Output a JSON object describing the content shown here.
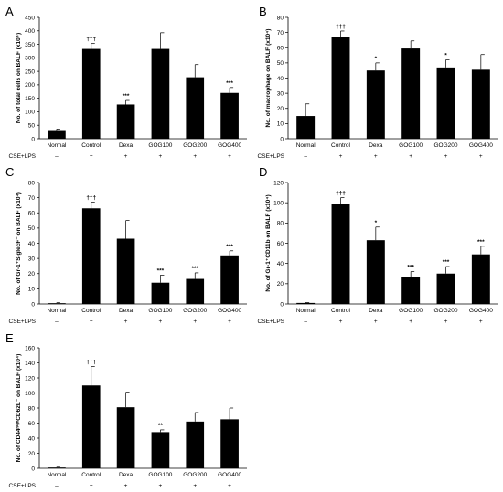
{
  "chart_data": [
    {
      "type": "bar",
      "panel": "A",
      "ylabel": "No. of total cells on BALF (x10⁴)",
      "ylim": [
        0,
        450
      ],
      "yticks": [
        0,
        50,
        100,
        150,
        200,
        250,
        300,
        350,
        400,
        450
      ],
      "categories": [
        "Normal",
        "Control",
        "Dexa",
        "GOG100",
        "GOG200",
        "GOG400"
      ],
      "values": [
        32,
        333,
        127,
        333,
        228,
        170
      ],
      "errors": [
        4,
        20,
        15,
        60,
        47,
        20
      ],
      "significance": [
        "",
        "†††",
        "***",
        "",
        "",
        "***"
      ],
      "treatment_label": "CSE+LPS",
      "treatment": [
        "–",
        "+",
        "+",
        "+",
        "+",
        "+"
      ],
      "color": "#000000"
    },
    {
      "type": "bar",
      "panel": "B",
      "ylabel": "No. of macrophage on BALF (x10⁴)",
      "ylim": [
        0,
        80
      ],
      "yticks": [
        0,
        10,
        20,
        30,
        40,
        50,
        60,
        70,
        80
      ],
      "categories": [
        "Normal",
        "Control",
        "Dexa",
        "GOG100",
        "GOG200",
        "GOG400"
      ],
      "values": [
        15,
        67,
        45,
        59.5,
        47,
        45.5
      ],
      "errors": [
        8,
        4,
        5,
        5,
        5,
        10
      ],
      "significance": [
        "",
        "†††",
        "*",
        "",
        "*",
        ""
      ],
      "treatment_label": "CSE+LPS",
      "treatment": [
        "–",
        "+",
        "+",
        "+",
        "+",
        "+"
      ],
      "color": "#000000"
    },
    {
      "type": "bar",
      "panel": "C",
      "ylabel": "No. of Gr-1⁺SiglecF⁻ on BALF (x10⁴)",
      "ylim": [
        0,
        80
      ],
      "yticks": [
        0,
        10,
        20,
        30,
        40,
        50,
        60,
        70,
        80
      ],
      "categories": [
        "Normal",
        "Control",
        "Dexa",
        "GOG100",
        "GOG200",
        "GOG400"
      ],
      "values": [
        0.5,
        63,
        43,
        14,
        16.5,
        32
      ],
      "errors": [
        0.3,
        4,
        12,
        5,
        4,
        3
      ],
      "significance": [
        "",
        "†††",
        "",
        "***",
        "***",
        "***"
      ],
      "treatment_label": "CSE+LPS",
      "treatment": [
        "–",
        "+",
        "+",
        "+",
        "+",
        "+"
      ],
      "color": "#000000"
    },
    {
      "type": "bar",
      "panel": "D",
      "ylabel": "No. of Gr-1⁺CD11b on BALF (x10⁴)",
      "ylim": [
        0,
        120
      ],
      "yticks": [
        0,
        20,
        40,
        60,
        80,
        100,
        120
      ],
      "categories": [
        "Normal",
        "Control",
        "Dexa",
        "GOG100",
        "GOG200",
        "GOG400"
      ],
      "values": [
        1,
        99,
        63,
        27,
        30,
        49
      ],
      "errors": [
        0.5,
        6,
        13,
        5,
        7,
        8
      ],
      "significance": [
        "",
        "†††",
        "*",
        "***",
        "***",
        "***"
      ],
      "treatment_label": "CSE+LPS",
      "treatment": [
        "–",
        "+",
        "+",
        "+",
        "+",
        "+"
      ],
      "color": "#000000"
    },
    {
      "type": "bar",
      "panel": "E",
      "ylabel": "No. of CD44ʰⁱᵍʰCD62L⁻ on BALF (x10⁴)",
      "ylim": [
        0,
        160
      ],
      "yticks": [
        0,
        20,
        40,
        60,
        80,
        100,
        120,
        140,
        160
      ],
      "categories": [
        "Normal",
        "Control",
        "Dexa",
        "GOG100",
        "GOG200",
        "GOG400"
      ],
      "values": [
        1,
        110,
        81,
        48,
        62,
        65
      ],
      "errors": [
        0.5,
        25,
        20,
        3,
        12,
        15
      ],
      "significance": [
        "",
        "†††",
        "",
        "**",
        "",
        ""
      ],
      "treatment_label": "CSE+LPS",
      "treatment": [
        "–",
        "+",
        "+",
        "+",
        "+",
        "+"
      ],
      "color": "#000000"
    }
  ]
}
